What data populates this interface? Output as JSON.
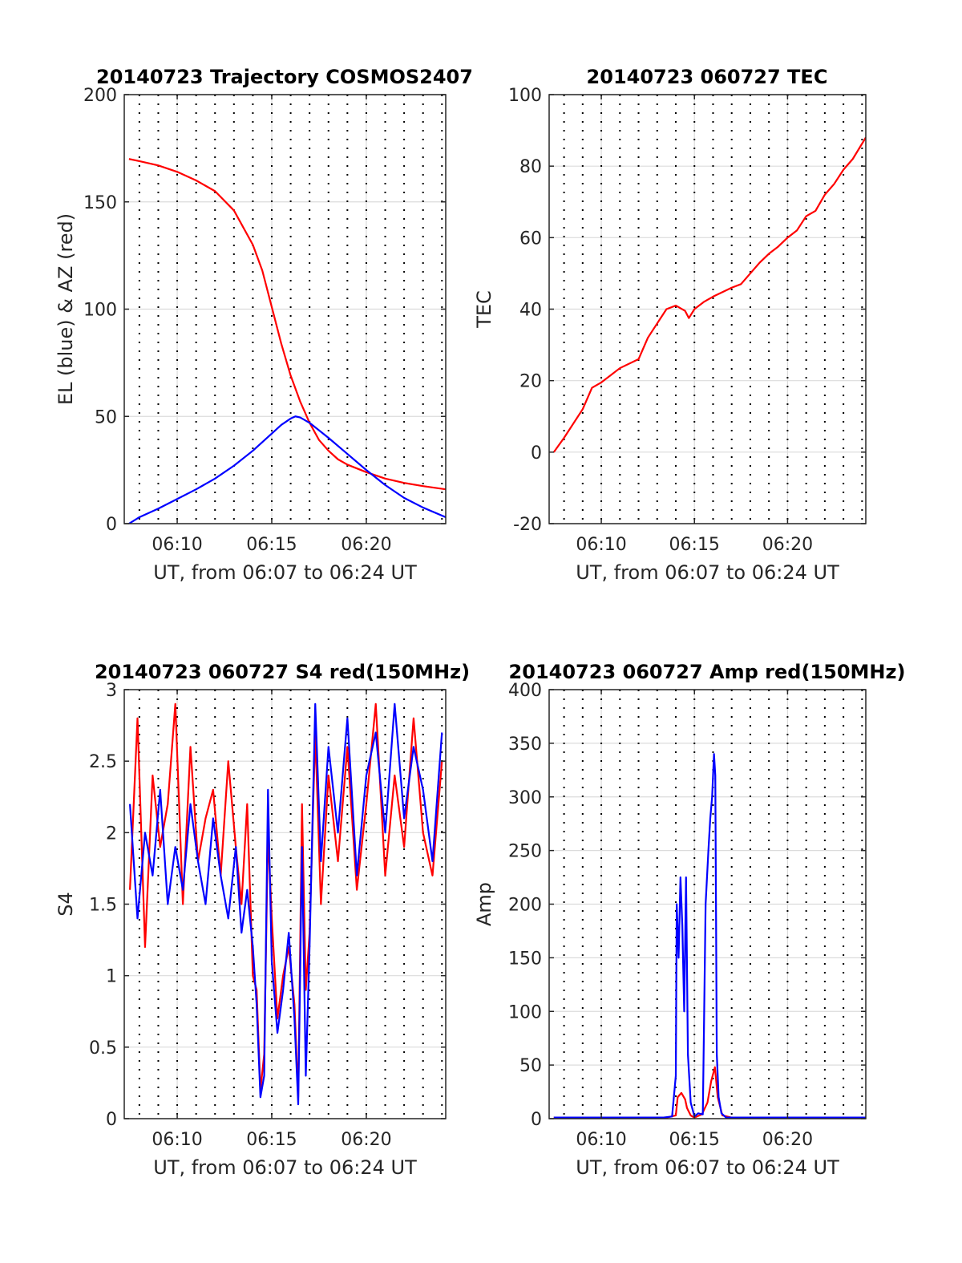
{
  "figure": {
    "background": "#ffffff",
    "colors": {
      "red": "#ff0000",
      "blue": "#0000ff",
      "grid": "#dcdcdc",
      "axis": "#262626"
    }
  },
  "chart_data": [
    {
      "id": "trajectory",
      "type": "line",
      "title": "20140723 Trajectory COSMOS2407",
      "xlabel": "UT, from 06:07 to 06:24 UT",
      "ylabel": "EL (blue) & AZ (red)",
      "x_unit": "minutes past 06:00 UT",
      "xlim": [
        7.2,
        24.2
      ],
      "ylim": [
        0,
        200
      ],
      "xticks": [
        10,
        15,
        20
      ],
      "xtick_labels": [
        "06:10",
        "06:15",
        "06:20"
      ],
      "yticks": [
        0,
        50,
        100,
        150,
        200
      ],
      "ytick_labels": [
        "0",
        "50",
        "100",
        "150",
        "200"
      ],
      "grid": true,
      "minute_dotted_gridlines": true,
      "series": [
        {
          "color": "#ff0000",
          "x": [
            7.45,
            8,
            9,
            10,
            11,
            12,
            13,
            14,
            14.5,
            15,
            15.5,
            16,
            16.5,
            17,
            17.5,
            18,
            18.5,
            19,
            20,
            21,
            22,
            23,
            24.2
          ],
          "values": [
            170,
            169,
            167,
            164,
            160,
            155,
            146,
            130,
            118,
            101,
            84,
            69,
            57,
            47,
            39,
            34,
            30,
            27.5,
            24,
            21,
            19,
            17.5,
            16
          ]
        },
        {
          "color": "#0000ff",
          "x": [
            7.45,
            8,
            9,
            10,
            11,
            12,
            13,
            14,
            15,
            15.5,
            16,
            16.25,
            16.5,
            17,
            18,
            19,
            20,
            21,
            22,
            23,
            24.2
          ],
          "values": [
            0,
            3,
            7,
            11.5,
            16,
            21,
            27,
            34,
            42,
            46,
            49,
            50,
            49.5,
            47,
            40,
            32.5,
            25,
            18,
            12,
            7.5,
            3
          ]
        }
      ]
    },
    {
      "id": "tec",
      "type": "line",
      "title": "20140723 060727 TEC",
      "xlabel": "UT, from 06:07 to 06:24 UT",
      "ylabel": "TEC",
      "x_unit": "minutes past 06:00 UT",
      "xlim": [
        7.2,
        24.2
      ],
      "ylim": [
        -20,
        100
      ],
      "xticks": [
        10,
        15,
        20
      ],
      "xtick_labels": [
        "06:10",
        "06:15",
        "06:20"
      ],
      "yticks": [
        -20,
        0,
        20,
        40,
        60,
        80,
        100
      ],
      "ytick_labels": [
        "-20",
        "0",
        "20",
        "40",
        "60",
        "80",
        "100"
      ],
      "grid": true,
      "minute_dotted_gridlines": true,
      "series": [
        {
          "color": "#ff0000",
          "x": [
            7.45,
            8,
            9,
            9.5,
            10,
            11,
            12,
            12.5,
            13,
            13.5,
            14,
            14.5,
            14.7,
            15,
            15.5,
            16,
            17,
            17.5,
            18,
            18.5,
            19,
            19.5,
            20,
            20.5,
            21,
            21.5,
            22,
            22.5,
            23,
            23.5,
            24.2
          ],
          "values": [
            0,
            4,
            12,
            18,
            19.5,
            23.5,
            26,
            32,
            36,
            40,
            41,
            39.5,
            37.5,
            40,
            42,
            43.5,
            46,
            47,
            50,
            53,
            55.5,
            57.5,
            60,
            62,
            66,
            67.5,
            72,
            75,
            79,
            82,
            88
          ]
        }
      ]
    },
    {
      "id": "s4",
      "type": "line",
      "title": "20140723 060727 S4 red(150MHz)",
      "xlabel": "UT, from 06:07 to 06:24 UT",
      "ylabel": "S4",
      "x_unit": "minutes past 06:00 UT",
      "xlim": [
        7.2,
        24.2
      ],
      "ylim": [
        0,
        3
      ],
      "xticks": [
        10,
        15,
        20
      ],
      "xtick_labels": [
        "06:10",
        "06:15",
        "06:20"
      ],
      "yticks": [
        0,
        0.5,
        1,
        1.5,
        2,
        2.5,
        3
      ],
      "ytick_labels": [
        "0",
        "0.5",
        "1",
        "1.5",
        "2",
        "2.5",
        "3"
      ],
      "grid": true,
      "minute_dotted_gridlines": true,
      "series": [
        {
          "color": "#ff0000",
          "x": [
            7.5,
            7.9,
            8.3,
            8.7,
            9.1,
            9.5,
            9.9,
            10.3,
            10.7,
            11.1,
            11.5,
            11.9,
            12.3,
            12.7,
            13.1,
            13.4,
            13.7,
            14.0,
            14.2,
            14.4,
            14.6,
            14.8,
            15.0,
            15.3,
            15.6,
            15.9,
            16.2,
            16.4,
            16.6,
            16.8,
            17.0,
            17.3,
            17.6,
            18.0,
            18.5,
            19.0,
            19.5,
            20.0,
            20.5,
            21.0,
            21.5,
            22.0,
            22.5,
            23.0,
            23.5,
            24.0
          ],
          "values": [
            1.6,
            2.8,
            1.2,
            2.4,
            1.9,
            2.2,
            2.9,
            1.5,
            2.6,
            1.8,
            2.1,
            2.3,
            1.7,
            2.5,
            1.9,
            1.5,
            2.2,
            1.0,
            0.9,
            0.2,
            0.45,
            2.0,
            1.4,
            0.7,
            1.0,
            1.2,
            0.8,
            0.15,
            2.2,
            0.9,
            1.3,
            2.7,
            1.5,
            2.4,
            1.8,
            2.6,
            1.6,
            2.2,
            2.9,
            1.7,
            2.4,
            1.9,
            2.8,
            2.0,
            1.7,
            2.5
          ]
        },
        {
          "color": "#0000ff",
          "x": [
            7.5,
            7.9,
            8.3,
            8.7,
            9.1,
            9.5,
            9.9,
            10.3,
            10.7,
            11.1,
            11.5,
            11.9,
            12.3,
            12.7,
            13.1,
            13.4,
            13.7,
            14.0,
            14.2,
            14.4,
            14.6,
            14.8,
            15.0,
            15.3,
            15.6,
            15.9,
            16.2,
            16.4,
            16.6,
            16.8,
            17.0,
            17.3,
            17.6,
            18.0,
            18.5,
            19.0,
            19.5,
            20.0,
            20.5,
            21.0,
            21.5,
            22.0,
            22.5,
            23.0,
            23.5,
            24.0
          ],
          "values": [
            2.2,
            1.4,
            2.0,
            1.7,
            2.3,
            1.5,
            1.9,
            1.6,
            2.2,
            1.8,
            1.5,
            2.1,
            1.7,
            1.4,
            1.9,
            1.3,
            1.6,
            1.2,
            0.8,
            0.15,
            0.3,
            2.3,
            1.1,
            0.6,
            0.9,
            1.3,
            0.7,
            0.1,
            1.9,
            0.3,
            1.2,
            2.9,
            1.8,
            2.6,
            2.0,
            2.8,
            1.7,
            2.4,
            2.7,
            2.0,
            2.9,
            2.1,
            2.6,
            2.3,
            1.8,
            2.7
          ]
        }
      ]
    },
    {
      "id": "amp",
      "type": "line",
      "title": "20140723 060727 Amp red(150MHz)",
      "xlabel": "UT, from 06:07 to 06:24 UT",
      "ylabel": "Amp",
      "x_unit": "minutes past 06:00 UT",
      "xlim": [
        7.2,
        24.2
      ],
      "ylim": [
        0,
        400
      ],
      "xticks": [
        10,
        15,
        20
      ],
      "xtick_labels": [
        "06:10",
        "06:15",
        "06:20"
      ],
      "yticks": [
        0,
        50,
        100,
        150,
        200,
        250,
        300,
        350,
        400
      ],
      "ytick_labels": [
        "0",
        "50",
        "100",
        "150",
        "200",
        "250",
        "300",
        "350",
        "400"
      ],
      "grid": true,
      "minute_dotted_gridlines": true,
      "series": [
        {
          "color": "#ff0000",
          "x": [
            7.45,
            10,
            13.5,
            14.0,
            14.1,
            14.3,
            14.5,
            14.6,
            14.8,
            15.0,
            15.4,
            15.7,
            15.9,
            16.1,
            16.25,
            16.5,
            17.0,
            20.0,
            24.2
          ],
          "values": [
            1,
            1,
            1,
            3,
            20,
            24,
            18,
            10,
            3,
            1,
            4,
            15,
            35,
            48,
            20,
            3,
            1,
            1,
            1
          ]
        },
        {
          "color": "#0000ff",
          "x": [
            7.45,
            9.0,
            11.0,
            13.3,
            13.8,
            14.0,
            14.05,
            14.15,
            14.25,
            14.35,
            14.45,
            14.55,
            14.65,
            14.8,
            15.0,
            15.2,
            15.45,
            15.6,
            15.75,
            15.85,
            15.95,
            16.05,
            16.12,
            16.2,
            16.3,
            16.45,
            16.7,
            17.5,
            20.0,
            24.2
          ],
          "values": [
            1,
            1,
            1,
            1,
            2,
            40,
            200,
            150,
            225,
            180,
            100,
            225,
            60,
            15,
            2,
            5,
            4,
            200,
            250,
            280,
            300,
            340,
            320,
            60,
            20,
            5,
            1,
            1,
            1,
            1
          ]
        }
      ]
    }
  ]
}
